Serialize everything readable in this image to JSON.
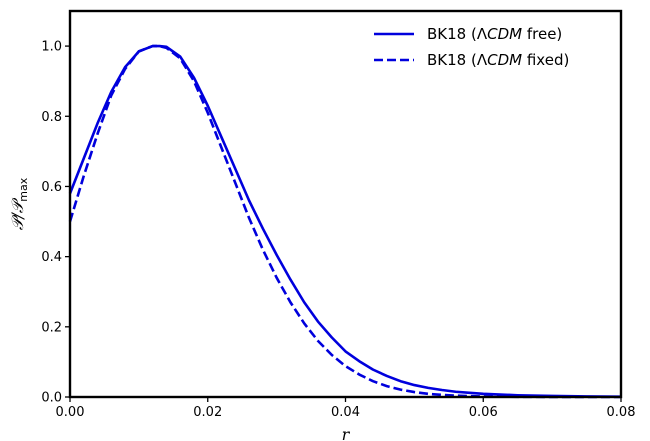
{
  "chart_data": {
    "type": "line",
    "title": "",
    "xlabel": "r",
    "ylabel": "𝒫/𝒫",
    "ylabel_sub": "max",
    "xlim": [
      0.0,
      0.08
    ],
    "ylim": [
      0.0,
      1.1
    ],
    "x_ticks": [
      0.0,
      0.02,
      0.04,
      0.06,
      0.08
    ],
    "x_tick_labels": [
      "0.00",
      "0.02",
      "0.04",
      "0.06",
      "0.08"
    ],
    "y_ticks": [
      0.0,
      0.2,
      0.4,
      0.6,
      0.8,
      1.0
    ],
    "y_tick_labels": [
      "0.0",
      "0.2",
      "0.4",
      "0.6",
      "0.8",
      "1.0"
    ],
    "grid": false,
    "legend_position": "top-right",
    "series": [
      {
        "name": "BK18 (ΛCDM free)",
        "name_parts": [
          "BK18 (Λ",
          "CDM",
          " free)"
        ],
        "style": "solid",
        "color": "#0000dd",
        "x": [
          0.0,
          0.002,
          0.004,
          0.006,
          0.008,
          0.01,
          0.012,
          0.013,
          0.014,
          0.016,
          0.018,
          0.02,
          0.022,
          0.024,
          0.026,
          0.028,
          0.03,
          0.032,
          0.034,
          0.036,
          0.038,
          0.04,
          0.042,
          0.044,
          0.046,
          0.048,
          0.05,
          0.052,
          0.054,
          0.056,
          0.058,
          0.06,
          0.065,
          0.07,
          0.075,
          0.08
        ],
        "y": [
          0.58,
          0.68,
          0.78,
          0.87,
          0.94,
          0.985,
          1.0,
          1.0,
          0.998,
          0.97,
          0.91,
          0.83,
          0.74,
          0.65,
          0.56,
          0.48,
          0.405,
          0.335,
          0.27,
          0.215,
          0.17,
          0.13,
          0.102,
          0.078,
          0.06,
          0.045,
          0.034,
          0.026,
          0.02,
          0.015,
          0.012,
          0.009,
          0.005,
          0.003,
          0.0015,
          0.001
        ]
      },
      {
        "name": "BK18 (ΛCDM fixed)",
        "name_parts": [
          "BK18 (Λ",
          "CDM",
          " fixed)"
        ],
        "style": "dashed",
        "color": "#0000dd",
        "x": [
          0.0,
          0.002,
          0.004,
          0.006,
          0.008,
          0.01,
          0.012,
          0.013,
          0.014,
          0.016,
          0.018,
          0.02,
          0.022,
          0.024,
          0.026,
          0.028,
          0.03,
          0.032,
          0.034,
          0.036,
          0.038,
          0.04,
          0.042,
          0.044,
          0.046,
          0.048,
          0.05,
          0.052,
          0.054,
          0.056,
          0.058,
          0.06,
          0.065,
          0.07,
          0.075,
          0.08
        ],
        "y": [
          0.5,
          0.63,
          0.75,
          0.86,
          0.935,
          0.985,
          1.0,
          1.0,
          0.995,
          0.965,
          0.9,
          0.81,
          0.71,
          0.61,
          0.51,
          0.42,
          0.34,
          0.27,
          0.21,
          0.16,
          0.12,
          0.088,
          0.064,
          0.045,
          0.031,
          0.021,
          0.014,
          0.009,
          0.006,
          0.004,
          0.0025,
          0.0015,
          0.0005,
          0.0002,
          0.0001,
          0.0
        ]
      }
    ]
  }
}
